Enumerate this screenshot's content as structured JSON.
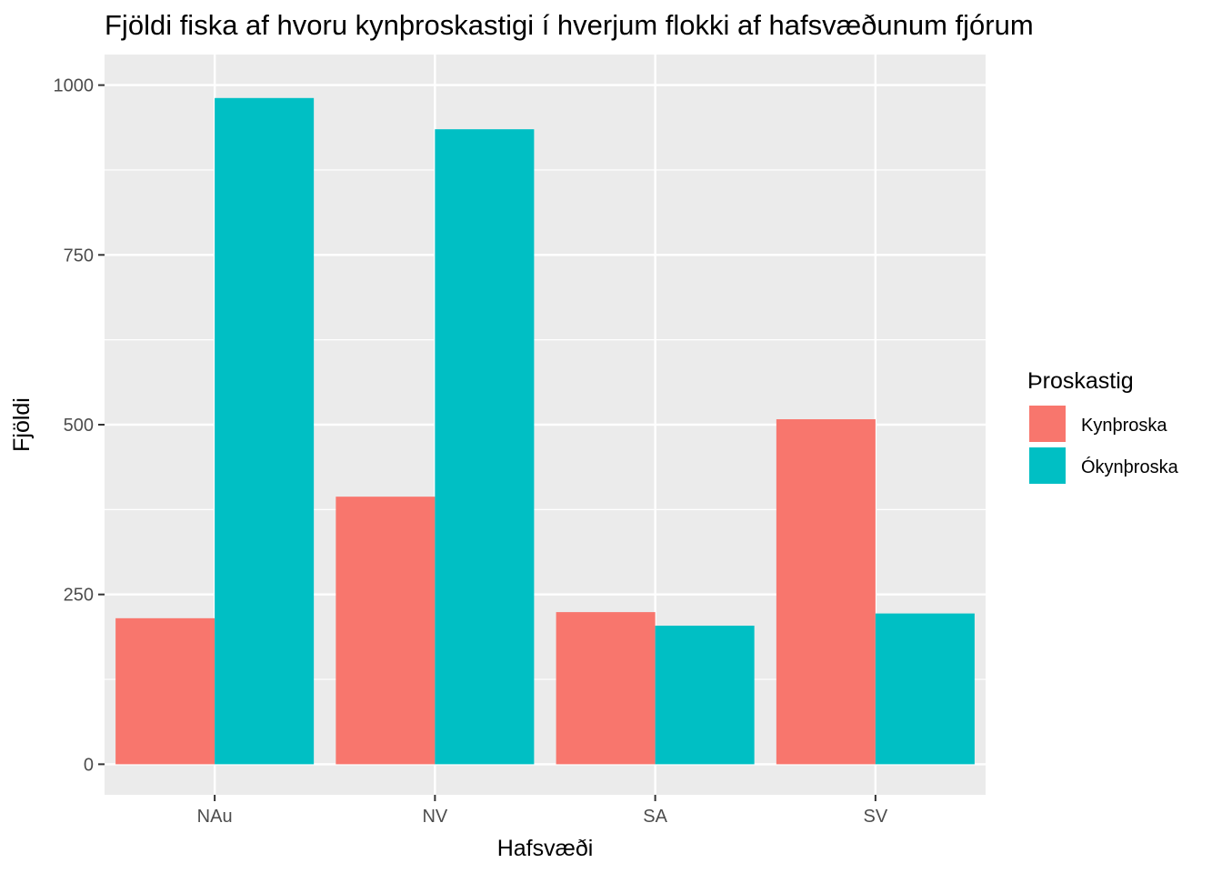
{
  "chart_data": {
    "type": "bar",
    "title": "Fjöldi fiska af hvoru kynþroskastigi í hverjum flokki af hafsvæðunum fjórum",
    "xlabel": "Hafsvæði",
    "ylabel": "Fjöldi",
    "categories": [
      "NAu",
      "NV",
      "SA",
      "SV"
    ],
    "series": [
      {
        "name": "Kynþroska",
        "color": "#F8766D",
        "values": [
          215,
          394,
          224,
          508
        ]
      },
      {
        "name": "Ókynþroska",
        "color": "#00BFC4",
        "values": [
          981,
          935,
          204,
          222
        ]
      }
    ],
    "ylim": [
      -45,
      1045
    ],
    "yticks": [
      0,
      250,
      500,
      750,
      1000
    ],
    "grid": true,
    "legend": {
      "title": "Þroskastig",
      "position": "right"
    },
    "panel_background": "#EBEBEB"
  }
}
